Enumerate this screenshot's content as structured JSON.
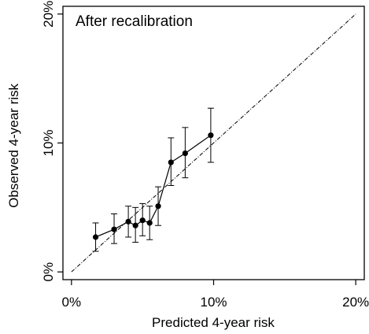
{
  "chart_data": {
    "type": "scatter",
    "title": "After recalibration",
    "xlabel": "Predicted 4-year risk",
    "ylabel": "Observed 4-year risk",
    "xlim": [
      -0.6,
      20.6
    ],
    "ylim": [
      -0.6,
      20.6
    ],
    "xticks": [
      0,
      10,
      20
    ],
    "yticks": [
      0,
      10,
      20
    ],
    "xtick_labels": [
      "0%",
      "10%",
      "20%"
    ],
    "ytick_labels": [
      "0%",
      "10%",
      "20%"
    ],
    "grid": false,
    "reference_line": {
      "from": [
        0,
        0
      ],
      "to": [
        20,
        20
      ],
      "style": "dash-dot"
    },
    "series": [
      {
        "points": [
          {
            "x": 1.7,
            "y": 2.7,
            "lower": 1.6,
            "upper": 3.8
          },
          {
            "x": 3.0,
            "y": 3.3,
            "lower": 2.2,
            "upper": 4.5
          },
          {
            "x": 4.0,
            "y": 3.9,
            "lower": 2.7,
            "upper": 5.1
          },
          {
            "x": 4.5,
            "y": 3.6,
            "lower": 2.3,
            "upper": 5.0
          },
          {
            "x": 5.0,
            "y": 4.0,
            "lower": 2.8,
            "upper": 5.3
          },
          {
            "x": 5.5,
            "y": 3.8,
            "lower": 2.5,
            "upper": 5.1
          },
          {
            "x": 6.1,
            "y": 5.1,
            "lower": 3.6,
            "upper": 6.6
          },
          {
            "x": 7.0,
            "y": 8.5,
            "lower": 6.7,
            "upper": 10.4
          },
          {
            "x": 8.0,
            "y": 9.2,
            "lower": 7.3,
            "upper": 11.2
          },
          {
            "x": 9.8,
            "y": 10.6,
            "lower": 8.5,
            "upper": 12.7
          }
        ]
      }
    ]
  }
}
